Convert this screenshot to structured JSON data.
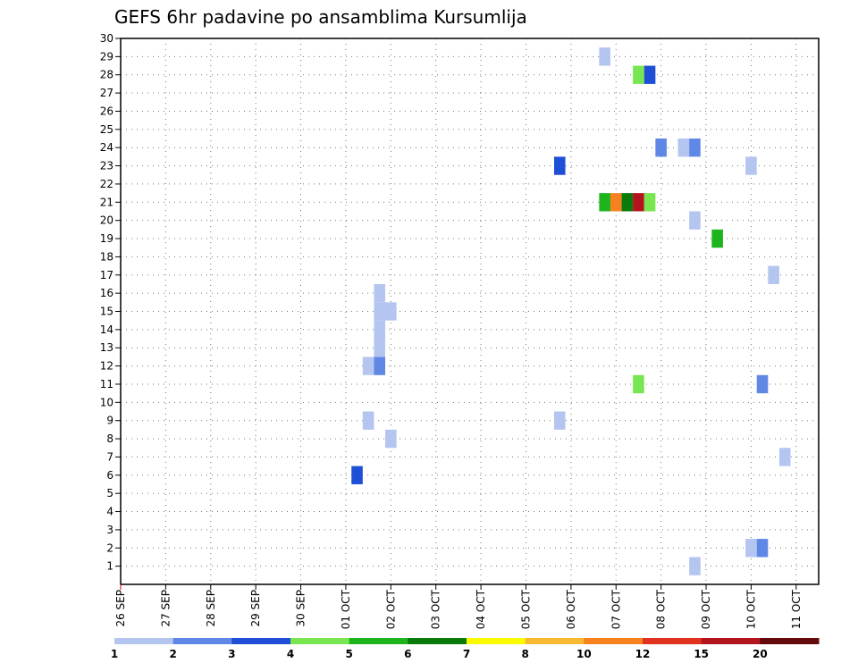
{
  "chart_data": {
    "type": "heatmap",
    "title": "GEFS 6hr padavine po ansamblima Kursumlija",
    "x_tick_labels": [
      "26 SEP",
      "27 SEP",
      "28 SEP",
      "29 SEP",
      "30 SEP",
      "01 OCT",
      "02 OCT",
      "03 OCT",
      "04 OCT",
      "05 OCT",
      "06 OCT",
      "07 OCT",
      "08 OCT",
      "09 OCT",
      "10 OCT",
      "11 OCT"
    ],
    "x_range_days": [
      0,
      15.5
    ],
    "y_range": [
      0,
      30
    ],
    "y_ticks": [
      1,
      2,
      3,
      4,
      5,
      6,
      7,
      8,
      9,
      10,
      11,
      12,
      13,
      14,
      15,
      16,
      17,
      18,
      19,
      20,
      21,
      22,
      23,
      24,
      25,
      26,
      27,
      28,
      29,
      30
    ],
    "grid": true,
    "colorbar": {
      "labels": [
        "1",
        "2",
        "3",
        "4",
        "5",
        "6",
        "7",
        "8",
        "10",
        "12",
        "15",
        "20"
      ],
      "colors": [
        "#b4c5f0",
        "#5f87e6",
        "#1e4fd6",
        "#78e650",
        "#1eb41e",
        "#0a7a0a",
        "#fafa00",
        "#fab932",
        "#f5821e",
        "#e0321e",
        "#b4141e",
        "#640a0a"
      ]
    },
    "cells": [
      {
        "day": 5.25,
        "member": 6,
        "color": "#1e4fd6"
      },
      {
        "day": 5.5,
        "member": 9,
        "color": "#b4c5f0"
      },
      {
        "day": 5.5,
        "member": 12,
        "color": "#b4c5f0"
      },
      {
        "day": 5.75,
        "member": 12,
        "color": "#5f87e6"
      },
      {
        "day": 5.75,
        "member": 13,
        "color": "#b4c5f0"
      },
      {
        "day": 5.75,
        "member": 14,
        "color": "#b4c5f0"
      },
      {
        "day": 5.75,
        "member": 15,
        "color": "#b4c5f0"
      },
      {
        "day": 5.75,
        "member": 16,
        "color": "#b4c5f0"
      },
      {
        "day": 6.0,
        "member": 8,
        "color": "#b4c5f0"
      },
      {
        "day": 6.0,
        "member": 15,
        "color": "#b4c5f0"
      },
      {
        "day": 9.75,
        "member": 9,
        "color": "#b4c5f0"
      },
      {
        "day": 9.75,
        "member": 23,
        "color": "#1e4fd6"
      },
      {
        "day": 10.75,
        "member": 21,
        "color": "#1eb41e"
      },
      {
        "day": 10.75,
        "member": 29,
        "color": "#b4c5f0"
      },
      {
        "day": 11.0,
        "member": 21,
        "color": "#f5821e"
      },
      {
        "day": 11.25,
        "member": 21,
        "color": "#0a7a0a"
      },
      {
        "day": 11.5,
        "member": 21,
        "color": "#b4141e"
      },
      {
        "day": 11.5,
        "member": 11,
        "color": "#78e650"
      },
      {
        "day": 11.5,
        "member": 28,
        "color": "#78e650"
      },
      {
        "day": 11.75,
        "member": 21,
        "color": "#78e650"
      },
      {
        "day": 11.75,
        "member": 28,
        "color": "#1e4fd6"
      },
      {
        "day": 12.0,
        "member": 24,
        "color": "#5f87e6"
      },
      {
        "day": 12.5,
        "member": 24,
        "color": "#b4c5f0"
      },
      {
        "day": 12.75,
        "member": 24,
        "color": "#5f87e6"
      },
      {
        "day": 12.75,
        "member": 20,
        "color": "#b4c5f0"
      },
      {
        "day": 12.75,
        "member": 1,
        "color": "#b4c5f0"
      },
      {
        "day": 13.25,
        "member": 19,
        "color": "#1eb41e"
      },
      {
        "day": 14.0,
        "member": 23,
        "color": "#b4c5f0"
      },
      {
        "day": 14.0,
        "member": 2,
        "color": "#b4c5f0"
      },
      {
        "day": 14.25,
        "member": 2,
        "color": "#5f87e6"
      },
      {
        "day": 14.25,
        "member": 11,
        "color": "#5f87e6"
      },
      {
        "day": 14.5,
        "member": 17,
        "color": "#b4c5f0"
      },
      {
        "day": 14.75,
        "member": 7,
        "color": "#b4c5f0"
      }
    ]
  }
}
